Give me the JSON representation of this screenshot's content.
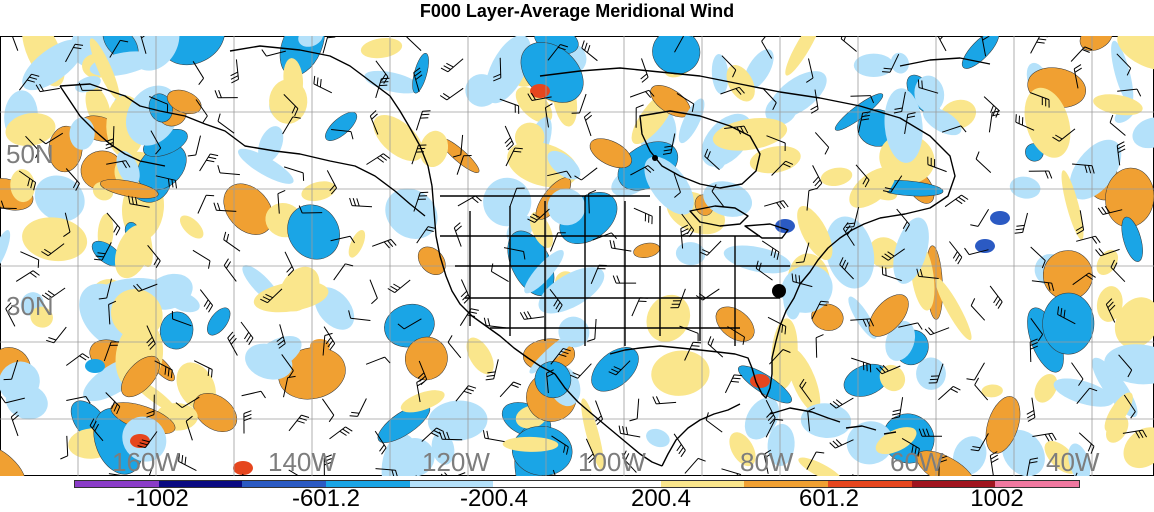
{
  "title": "F000 Layer-Average Meridional Wind",
  "lat_labels": [
    "50N",
    "30N"
  ],
  "lon_labels": [
    "160W",
    "140W",
    "120W",
    "100W",
    "80W",
    "60W",
    "40W"
  ],
  "colorbar": {
    "colors": [
      "#8a3cc8",
      "#0a0a82",
      "#2b5ac3",
      "#1aa5e6",
      "#b4e1fa",
      "#ffffff",
      "#ffffff",
      "#fae68c",
      "#f0a032",
      "#e6461e",
      "#a0141e",
      "#f078a0"
    ],
    "labels": [
      "-1002",
      "-601.2",
      "-200.4",
      "200.4",
      "601.2",
      "1002"
    ]
  },
  "palette": {
    "neg_light": "#b4e1fa",
    "neg_mid": "#1aa5e6",
    "neg_dark": "#2b5ac3",
    "pos_light": "#fae68c",
    "pos_mid": "#f0a032",
    "pos_dark": "#e6461e",
    "coast": "#000000",
    "grid": "#9b9b9b"
  },
  "station_marker": "black-dot"
}
